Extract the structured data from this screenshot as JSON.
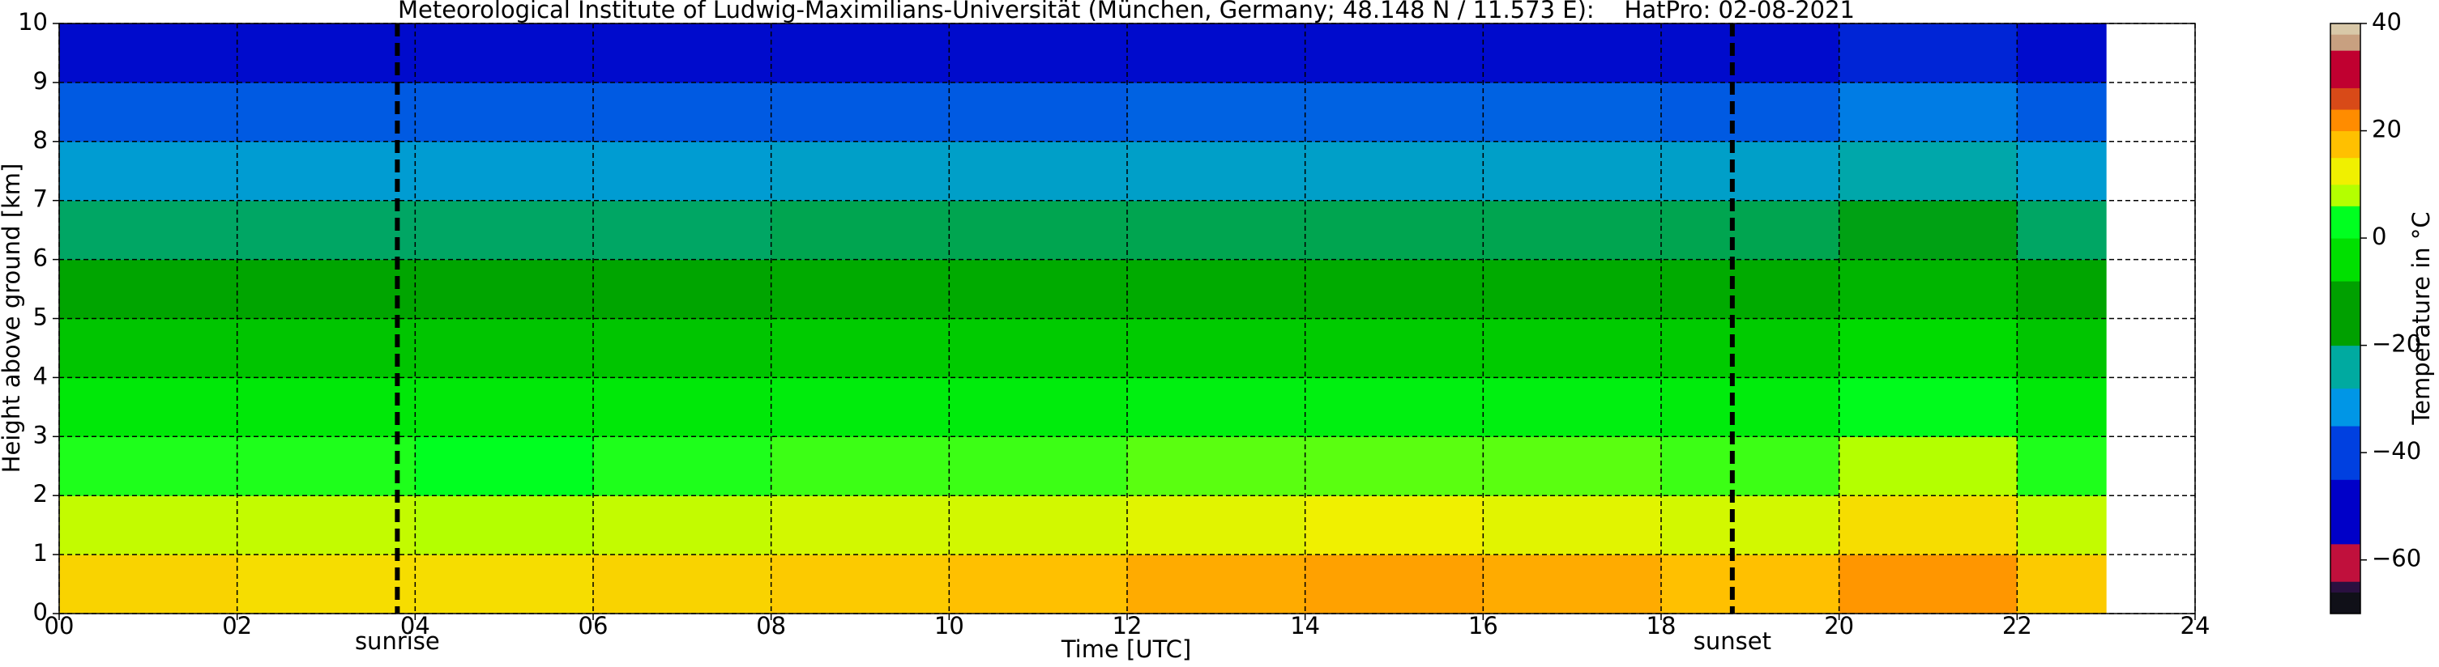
{
  "chart_data": {
    "type": "heatmap",
    "title": "Meteorological Institute of Ludwig-Maximilians-Universität (München, Germany; 48.148 N / 11.573 E):    HatPro: 02-08-2021",
    "xlabel": "Time [UTC]",
    "ylabel": "Height above ground [km]",
    "x_edges": [
      0,
      2,
      4,
      6,
      8,
      10,
      12,
      14,
      16,
      18,
      20,
      22,
      23
    ],
    "y_edges": [
      0,
      1,
      2,
      3,
      4,
      5,
      6,
      7,
      8,
      9,
      10
    ],
    "values": [
      [
        13,
        12,
        12,
        13,
        14,
        15,
        17,
        18,
        17,
        15,
        19,
        14
      ],
      [
        7,
        7,
        6,
        7,
        8,
        8,
        9,
        10,
        9,
        8,
        12,
        7
      ],
      [
        1,
        1,
        0,
        1,
        2,
        2,
        3,
        3,
        3,
        2,
        6,
        1
      ],
      [
        -6,
        -6,
        -6,
        -6,
        -5,
        -5,
        -4,
        -4,
        -4,
        -5,
        -1,
        -6
      ],
      [
        -13,
        -13,
        -13,
        -13,
        -12,
        -12,
        -12,
        -12,
        -12,
        -12,
        -9,
        -13
      ],
      [
        -19,
        -19,
        -19,
        -19,
        -18,
        -18,
        -18,
        -18,
        -18,
        -18,
        -16,
        -19
      ],
      [
        -25,
        -25,
        -25,
        -25,
        -24,
        -24,
        -24,
        -24,
        -24,
        -24,
        -21,
        -25
      ],
      [
        -33,
        -33,
        -33,
        -33,
        -32,
        -32,
        -32,
        -32,
        -32,
        -32,
        -29,
        -33
      ],
      [
        -42,
        -42,
        -42,
        -42,
        -42,
        -42,
        -41,
        -41,
        -41,
        -42,
        -38,
        -42
      ],
      [
        -55,
        -55,
        -55,
        -55,
        -55,
        -55,
        -55,
        -55,
        -55,
        -55,
        -50,
        -55
      ]
    ],
    "xlim": [
      0,
      24
    ],
    "ylim": [
      0,
      10
    ],
    "xticks": [
      {
        "value": 0,
        "label": "00"
      },
      {
        "value": 2,
        "label": "02"
      },
      {
        "value": 4,
        "label": "04"
      },
      {
        "value": 6,
        "label": "06"
      },
      {
        "value": 8,
        "label": "08"
      },
      10,
      12,
      14,
      16,
      18,
      20,
      22,
      24
    ],
    "yticks": [
      0,
      1,
      2,
      3,
      4,
      5,
      6,
      7,
      8,
      9,
      10
    ],
    "grid": true,
    "annotations": [
      {
        "x": 3.8,
        "label": "sunrise"
      },
      {
        "x": 18.8,
        "label": "sunset"
      }
    ],
    "colorbar": {
      "label": "Temperature in °C",
      "lim": [
        -70,
        40
      ],
      "ticks": [
        {
          "value": -60,
          "label": "−60"
        },
        {
          "value": -40,
          "label": "−40"
        },
        {
          "value": -20,
          "label": "−20"
        },
        0,
        20,
        40
      ],
      "stops": [
        {
          "value": -70,
          "color": "#101018"
        },
        {
          "value": -66,
          "color": "#2a1040"
        },
        {
          "value": -64,
          "color": "#c0103c"
        },
        {
          "value": -57,
          "color": "#0000c8"
        },
        {
          "value": -45,
          "color": "#0040e0"
        },
        {
          "value": -35,
          "color": "#0096e6"
        },
        {
          "value": -28,
          "color": "#00aaa0"
        },
        {
          "value": -20,
          "color": "#00a000"
        },
        {
          "value": -8,
          "color": "#00e000"
        },
        {
          "value": 0,
          "color": "#00ff20"
        },
        {
          "value": 6,
          "color": "#b4ff00"
        },
        {
          "value": 10,
          "color": "#f0f000"
        },
        {
          "value": 15,
          "color": "#ffc000"
        },
        {
          "value": 20,
          "color": "#ff8c00"
        },
        {
          "value": 24,
          "color": "#d84a18"
        },
        {
          "value": 28,
          "color": "#c00030"
        },
        {
          "value": 35,
          "color": "#c8a080"
        },
        {
          "value": 38,
          "color": "#d8c8a8"
        },
        {
          "value": 40,
          "color": "#e8e0d0"
        }
      ]
    }
  }
}
